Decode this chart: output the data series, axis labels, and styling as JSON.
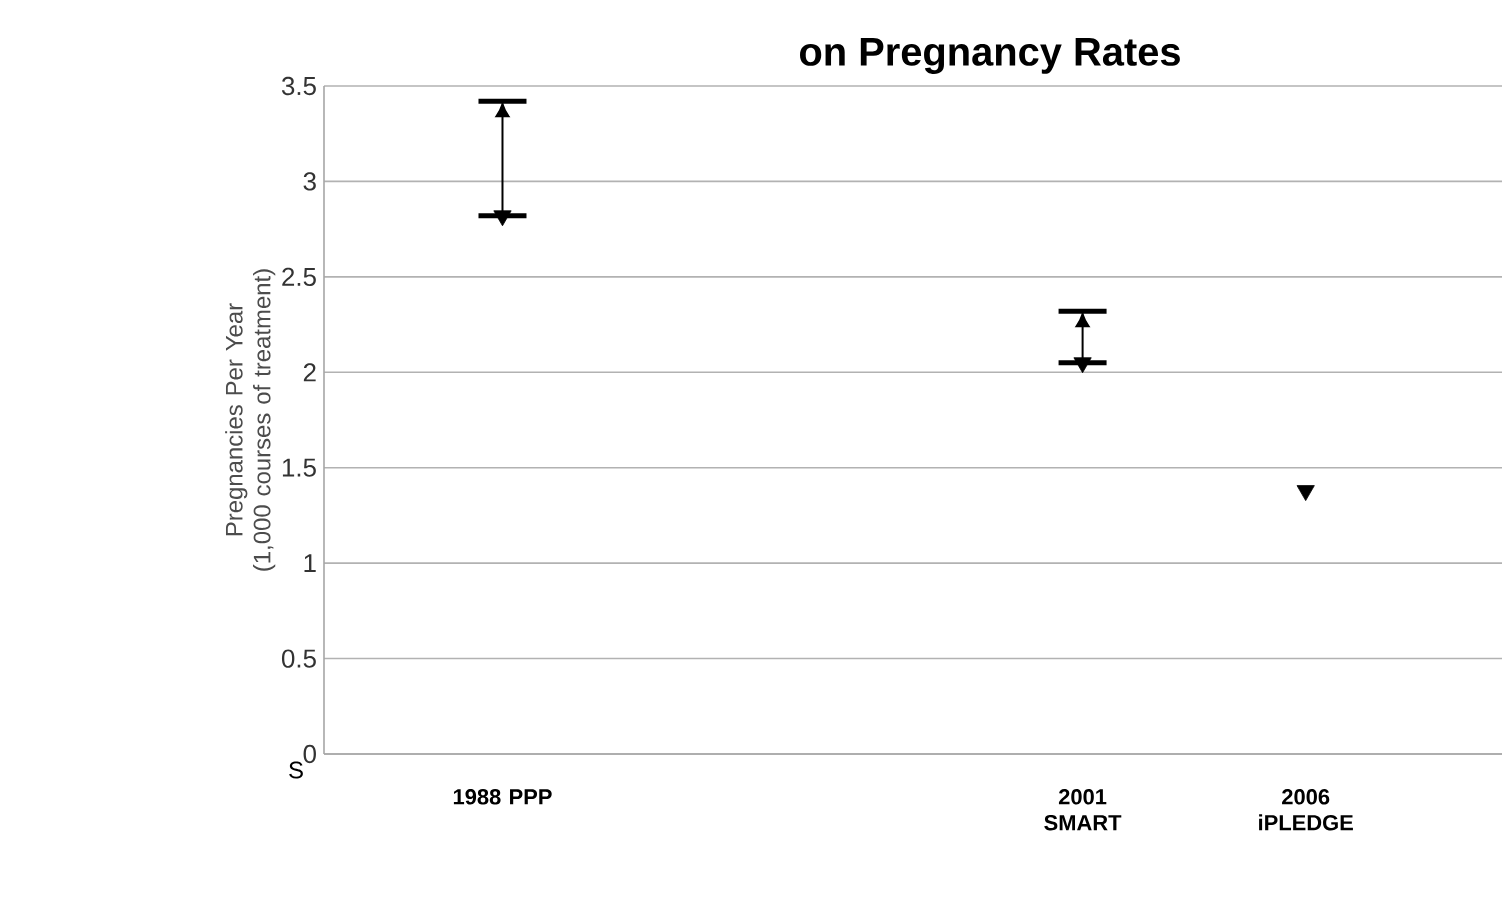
{
  "chart_data": {
    "type": "scatter",
    "title": "on Pregnancy Rates",
    "ylabel": "Pregnancies Per Year (1,000 courses of treatment)",
    "x": [
      1988,
      2001,
      2006
    ],
    "values": [
      2.82,
      2.05,
      1.38
    ],
    "errors": [
      [
        2.82,
        3.42
      ],
      [
        2.05,
        2.32
      ],
      null
    ],
    "color": "#000000",
    "marker": "triangle",
    "xlim": [
      1984,
      2010.4
    ],
    "xticks": [
      {
        "value": 1988,
        "label": "1988 PPP"
      },
      {
        "value": 2001,
        "label": "2001 SMART"
      },
      {
        "value": 2006,
        "label": "2006 iPLEDGE"
      }
    ],
    "ylim": [
      0,
      3.5
    ],
    "yticks": [
      0,
      0.5,
      1,
      1.5,
      2,
      2.5,
      3,
      3.5
    ],
    "grid": "y",
    "annotations": [
      "S"
    ]
  }
}
